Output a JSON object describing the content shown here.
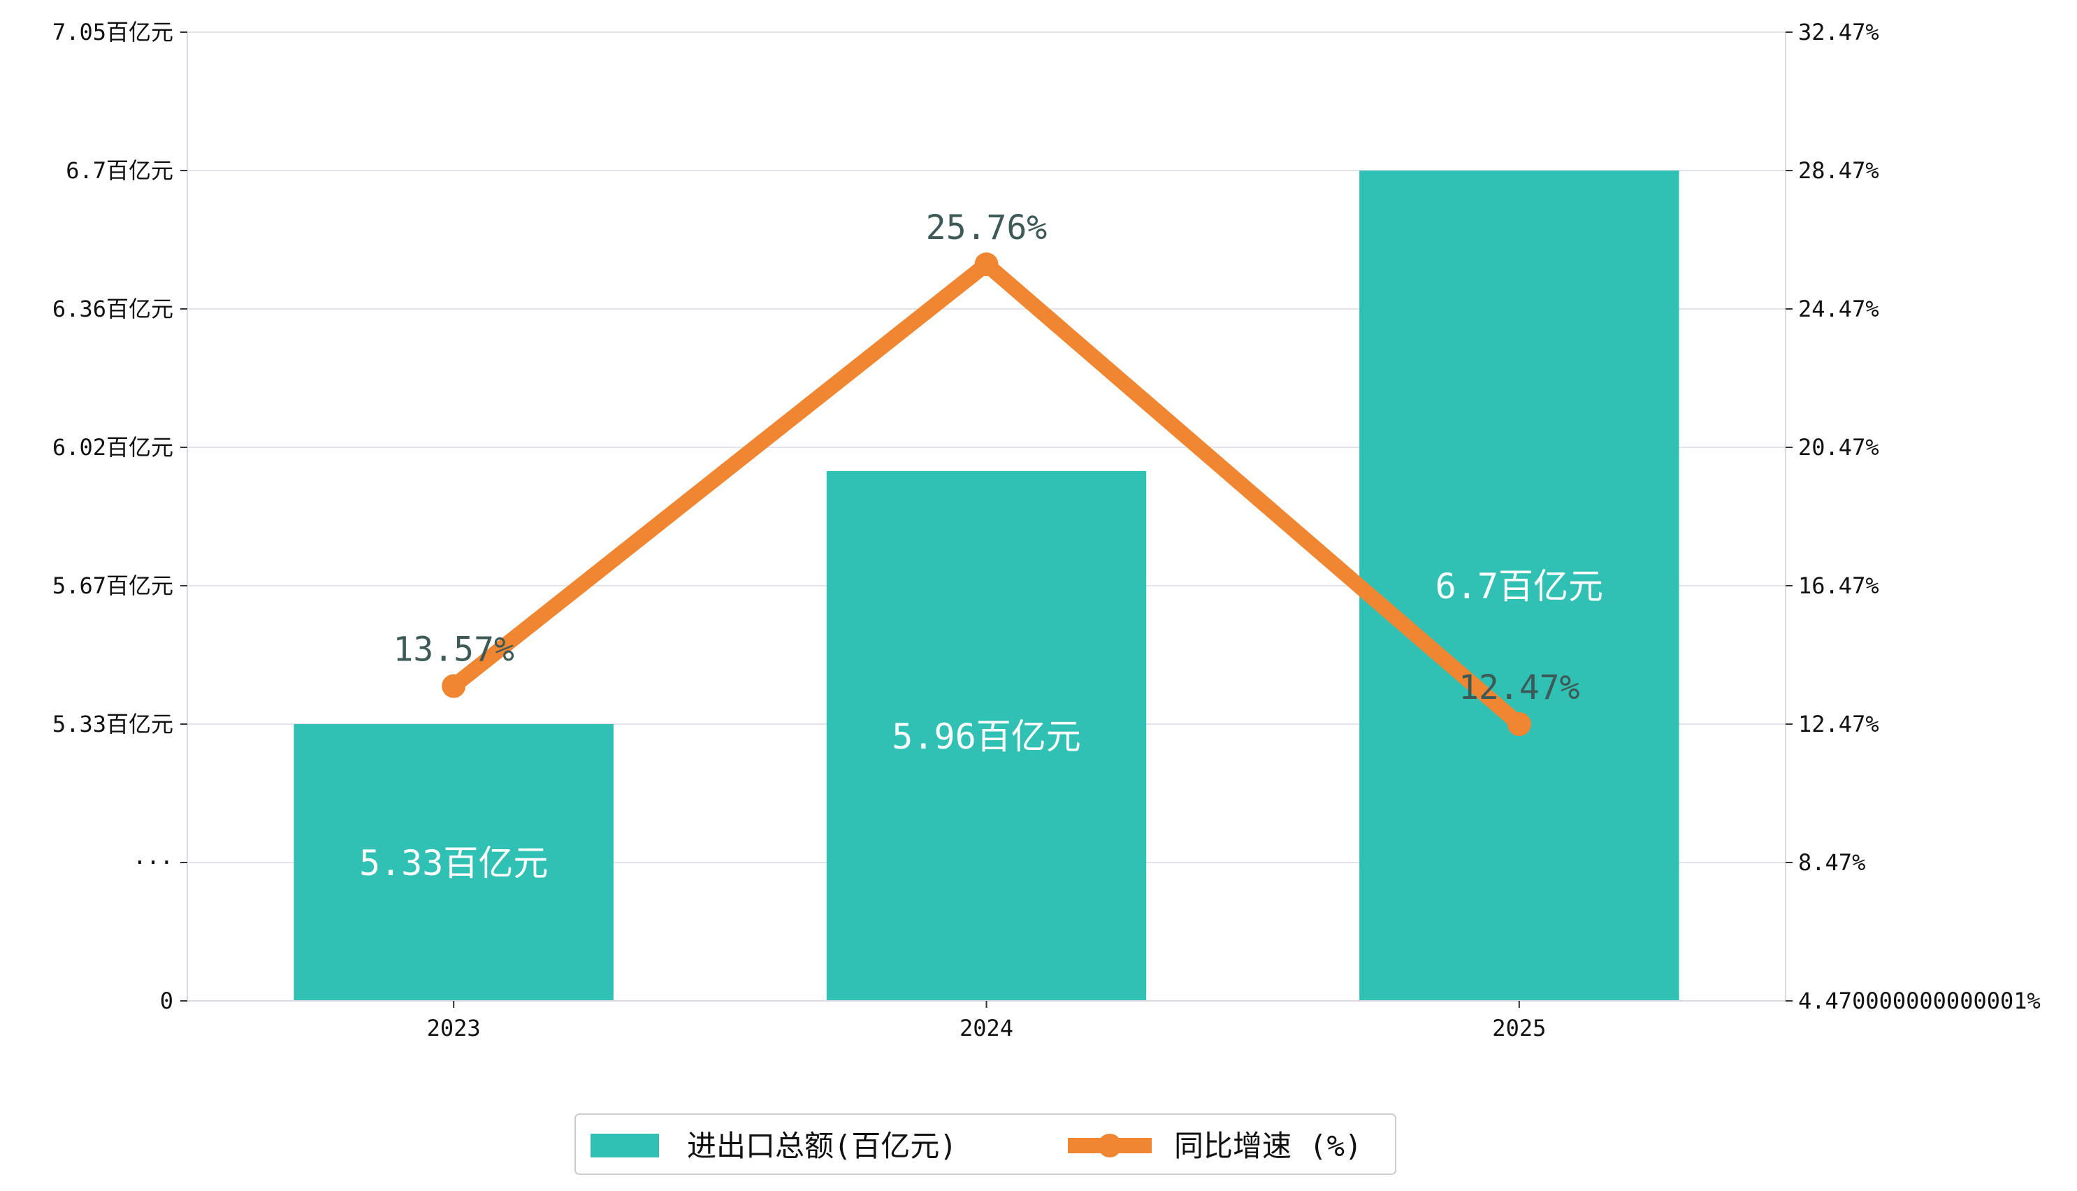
{
  "chart_data": {
    "type": "bar",
    "categories": [
      "2023",
      "2024",
      "2025"
    ],
    "series": [
      {
        "name": "进出口总额(百亿元)",
        "type": "bar",
        "axis": "left",
        "values": [
          5.33,
          5.96,
          6.7
        ],
        "value_labels": [
          "5.33百亿元",
          "5.96百亿元",
          "6.7百亿元"
        ],
        "color": "#31c1b4"
      },
      {
        "name": "同比增速 (%)",
        "type": "line",
        "axis": "right",
        "values": [
          13.57,
          25.76,
          12.47
        ],
        "value_labels": [
          "13.57%",
          "25.76%",
          "12.47%"
        ],
        "color": "#f08632"
      }
    ],
    "left_axis": {
      "broken": true,
      "tick_values": [
        0,
        4.99,
        5.33,
        5.67,
        6.02,
        6.36,
        6.7,
        7.05
      ],
      "tick_labels": [
        "0",
        "···",
        "5.33百亿元",
        "5.67百亿元",
        "6.02百亿元",
        "6.36百亿元",
        "6.7百亿元",
        "7.05百亿元"
      ]
    },
    "right_axis": {
      "ylim": [
        4.47,
        32.47
      ],
      "tick_values": [
        4.47,
        8.47,
        12.47,
        16.47,
        20.47,
        24.47,
        28.47,
        32.47
      ],
      "tick_labels": [
        "4.470000000000001%",
        "8.47%",
        "12.47%",
        "16.47%",
        "20.47%",
        "24.47%",
        "28.47%",
        "32.47%"
      ]
    },
    "grid": true,
    "legend_position": "bottom-center",
    "gridline_color": "#e3e3ee",
    "axis_color": "#d9d9e3"
  }
}
